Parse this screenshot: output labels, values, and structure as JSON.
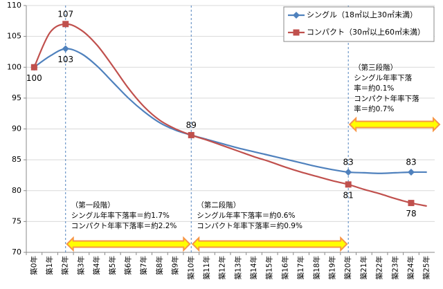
{
  "chart_data": {
    "type": "line",
    "categories": [
      "築0年",
      "築1年",
      "築2年",
      "築3年",
      "築4年",
      "築5年",
      "築6年",
      "築7年",
      "築8年",
      "築9年",
      "築10年",
      "築11年",
      "築12年",
      "築13年",
      "築14年",
      "築15年",
      "築16年",
      "築17年",
      "築18年",
      "築19年",
      "築20年",
      "築21年",
      "築22年",
      "築23年",
      "築24年",
      "築25年"
    ],
    "series": [
      {
        "name": "シングル（18㎡以上30㎡未満）",
        "color": "#4f81bd",
        "marker": "diamond",
        "values": [
          100,
          101.8,
          103,
          102.2,
          100.2,
          97.6,
          95,
          92.8,
          91,
          89.8,
          89,
          88.3,
          87.6,
          86.9,
          86.3,
          85.7,
          85.1,
          84.5,
          83.9,
          83.4,
          83,
          82.9,
          82.8,
          82.9,
          83,
          83
        ],
        "marker_points": [
          0,
          2,
          10,
          20,
          24
        ],
        "labeled_points": [
          0,
          2,
          10,
          20,
          24
        ]
      },
      {
        "name": "コンパクト（30㎡以上60㎡未満）",
        "color": "#c0504d",
        "marker": "square",
        "values": [
          100,
          105.6,
          107,
          106,
          103.6,
          100.2,
          96.6,
          93.6,
          91.4,
          90,
          89,
          88.2,
          87.3,
          86.4,
          85.5,
          84.7,
          83.8,
          83,
          82.3,
          81.6,
          81,
          80.2,
          79.5,
          78.7,
          78,
          77.5
        ],
        "marker_points": [
          0,
          2,
          10,
          20,
          24
        ],
        "labeled_points": [
          2,
          20,
          24
        ]
      }
    ],
    "ylim": [
      70,
      110
    ],
    "yticks": [
      70,
      75,
      80,
      85,
      90,
      95,
      100,
      105,
      110
    ],
    "grid": true,
    "legend": "top-right",
    "annotations": [
      {
        "lines": [
          "（第一段階）",
          "シングル年率下落率＝約1.7%",
          "コンパクト年率下落率＝約2.2%"
        ],
        "from": 2,
        "to": 10
      },
      {
        "lines": [
          "（第二段階）",
          "シングル年率下落率＝約0.6%",
          "コンパクト年率下落率＝約0.9%"
        ],
        "from": 10,
        "to": 20
      },
      {
        "lines": [
          "（第三段階）",
          "シングル年率下落",
          "率＝約0.1%",
          "コンパクト年率下落",
          "率＝約0.7%"
        ],
        "from": 20,
        "to": 25
      }
    ]
  }
}
